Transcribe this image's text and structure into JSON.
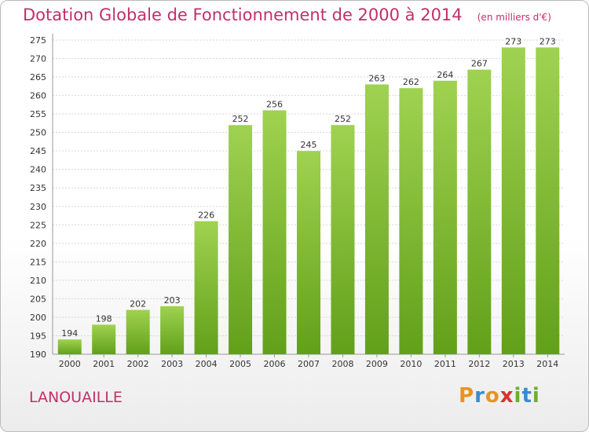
{
  "header": {
    "title": "Dotation Globale de Fonctionnement de 2000 à 2014",
    "unit": "(en milliers d'€)"
  },
  "footer": {
    "commune": "LANOUAILLE",
    "logo_text": "Proxiti",
    "logo_letters": [
      {
        "ch": "P",
        "color": "#e8941f"
      },
      {
        "ch": "r",
        "color": "#3a8ccf"
      },
      {
        "ch": "o",
        "color": "#e8941f"
      },
      {
        "ch": "x",
        "color": "#d9312c"
      },
      {
        "ch": "i",
        "color": "#6cae2f"
      },
      {
        "ch": "t",
        "color": "#3a8ccf"
      },
      {
        "ch": "i",
        "color": "#6cae2f"
      }
    ]
  },
  "colors": {
    "title": "#c0306a",
    "bar_top": "#9fd250",
    "bar_bottom": "#62a01a"
  },
  "chart_data": {
    "type": "bar",
    "title": "Dotation Globale de Fonctionnement de 2000 à 2014",
    "subtitle": "(en milliers d'€)",
    "xlabel": "",
    "ylabel": "",
    "categories": [
      "2000",
      "2001",
      "2002",
      "2003",
      "2004",
      "2005",
      "2006",
      "2007",
      "2008",
      "2009",
      "2010",
      "2011",
      "2012",
      "2013",
      "2014"
    ],
    "values": [
      194,
      198,
      202,
      203,
      226,
      252,
      256,
      245,
      252,
      263,
      262,
      264,
      267,
      273,
      273
    ],
    "ylim": [
      190,
      275
    ],
    "yticks": [
      190,
      195,
      200,
      205,
      210,
      215,
      220,
      225,
      230,
      235,
      240,
      245,
      250,
      255,
      260,
      265,
      270,
      275
    ],
    "grid": true,
    "data_labels": true
  }
}
